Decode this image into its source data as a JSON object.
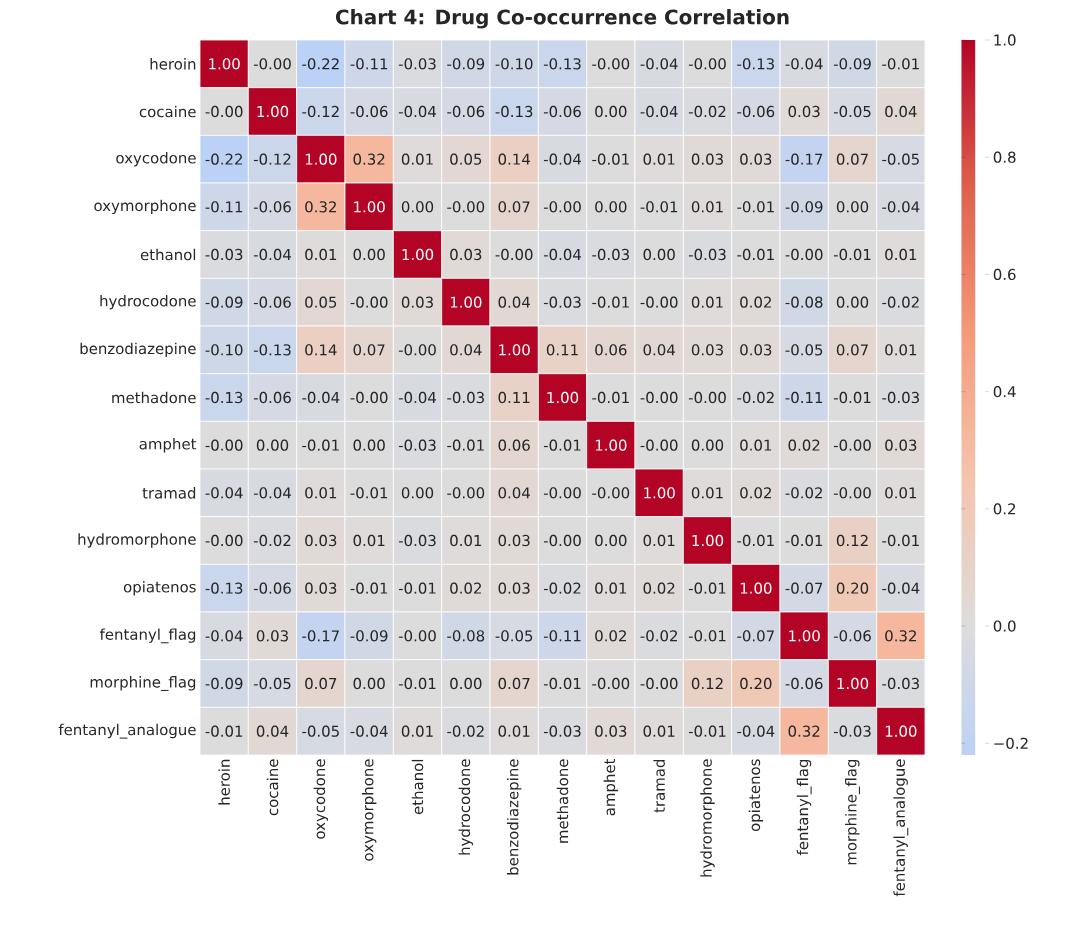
{
  "chart_data": {
    "type": "heatmap",
    "title": "Chart 4: Drug Co-occurrence Correlation",
    "categories": [
      "heroin",
      "cocaine",
      "oxycodone",
      "oxymorphone",
      "ethanol",
      "hydrocodone",
      "benzodiazepine",
      "methadone",
      "amphet",
      "tramad",
      "hydromorphone",
      "opiatenos",
      "fentanyl_flag",
      "morphine_flag",
      "fentanyl_analogue"
    ],
    "y_categories": [
      "heroin",
      "cocaine",
      "oxycodone",
      "oxymorphone",
      "ethanol",
      "hydrocodone",
      "benzodiazepine",
      "methadone",
      "amphet",
      "tramad",
      "hydromorphone",
      "opiatenos",
      "fentanyl_flag",
      "morphine_flag",
      "fentanyl_analogue"
    ],
    "cells": [
      [
        1.0,
        -0.0,
        -0.22,
        -0.11,
        -0.03,
        -0.09,
        -0.1,
        -0.13,
        -0.0,
        -0.04,
        -0.0,
        -0.13,
        -0.04,
        -0.09,
        -0.01
      ],
      [
        -0.0,
        1.0,
        -0.12,
        -0.06,
        -0.04,
        -0.06,
        -0.13,
        -0.06,
        0.0,
        -0.04,
        -0.02,
        -0.06,
        0.03,
        -0.05,
        0.04
      ],
      [
        -0.22,
        -0.12,
        1.0,
        0.32,
        0.01,
        0.05,
        0.14,
        -0.04,
        -0.01,
        0.01,
        0.03,
        0.03,
        -0.17,
        0.07,
        -0.05
      ],
      [
        -0.11,
        -0.06,
        0.32,
        1.0,
        0.0,
        -0.0,
        0.07,
        -0.0,
        0.0,
        -0.01,
        0.01,
        -0.01,
        -0.09,
        0.0,
        -0.04
      ],
      [
        -0.03,
        -0.04,
        0.01,
        0.0,
        1.0,
        0.03,
        -0.0,
        -0.04,
        -0.03,
        0.0,
        -0.03,
        -0.01,
        -0.0,
        -0.01,
        0.01
      ],
      [
        -0.09,
        -0.06,
        0.05,
        -0.0,
        0.03,
        1.0,
        0.04,
        -0.03,
        -0.01,
        -0.0,
        0.01,
        0.02,
        -0.08,
        0.0,
        -0.02
      ],
      [
        -0.1,
        -0.13,
        0.14,
        0.07,
        -0.0,
        0.04,
        1.0,
        0.11,
        0.06,
        0.04,
        0.03,
        0.03,
        -0.05,
        0.07,
        0.01
      ],
      [
        -0.13,
        -0.06,
        -0.04,
        -0.0,
        -0.04,
        -0.03,
        0.11,
        1.0,
        -0.01,
        -0.0,
        -0.0,
        -0.02,
        -0.11,
        -0.01,
        -0.03
      ],
      [
        -0.0,
        0.0,
        -0.01,
        0.0,
        -0.03,
        -0.01,
        0.06,
        -0.01,
        1.0,
        -0.0,
        0.0,
        0.01,
        0.02,
        -0.0,
        0.03
      ],
      [
        -0.04,
        -0.04,
        0.01,
        -0.01,
        0.0,
        -0.0,
        0.04,
        -0.0,
        -0.0,
        1.0,
        0.01,
        0.02,
        -0.02,
        -0.0,
        0.01
      ],
      [
        -0.0,
        -0.02,
        0.03,
        0.01,
        -0.03,
        0.01,
        0.03,
        -0.0,
        0.0,
        0.01,
        1.0,
        -0.01,
        -0.01,
        0.12,
        -0.01
      ],
      [
        -0.13,
        -0.06,
        0.03,
        -0.01,
        -0.01,
        0.02,
        0.03,
        -0.02,
        0.01,
        0.02,
        -0.01,
        1.0,
        -0.07,
        0.2,
        -0.04
      ],
      [
        -0.04,
        0.03,
        -0.17,
        -0.09,
        -0.0,
        -0.08,
        -0.05,
        -0.11,
        0.02,
        -0.02,
        -0.01,
        -0.07,
        1.0,
        -0.06,
        0.32
      ],
      [
        -0.09,
        -0.05,
        0.07,
        0.0,
        -0.01,
        0.0,
        0.07,
        -0.01,
        -0.0,
        -0.0,
        0.12,
        0.2,
        -0.06,
        1.0,
        -0.03
      ],
      [
        -0.01,
        0.04,
        -0.05,
        -0.04,
        0.01,
        -0.02,
        0.01,
        -0.03,
        0.03,
        0.01,
        -0.01,
        -0.04,
        0.32,
        -0.03,
        1.0
      ]
    ],
    "cell_labels": [
      [
        "1.00",
        "-0.00",
        "-0.22",
        "-0.11",
        "-0.03",
        "-0.09",
        "-0.10",
        "-0.13",
        "-0.00",
        "-0.04",
        "-0.00",
        "-0.13",
        "-0.04",
        "-0.09",
        "-0.01"
      ],
      [
        "-0.00",
        "1.00",
        "-0.12",
        "-0.06",
        "-0.04",
        "-0.06",
        "-0.13",
        "-0.06",
        "0.00",
        "-0.04",
        "-0.02",
        "-0.06",
        "0.03",
        "-0.05",
        "0.04"
      ],
      [
        "-0.22",
        "-0.12",
        "1.00",
        "0.32",
        "0.01",
        "0.05",
        "0.14",
        "-0.04",
        "-0.01",
        "0.01",
        "0.03",
        "0.03",
        "-0.17",
        "0.07",
        "-0.05"
      ],
      [
        "-0.11",
        "-0.06",
        "0.32",
        "1.00",
        "0.00",
        "-0.00",
        "0.07",
        "-0.00",
        "0.00",
        "-0.01",
        "0.01",
        "-0.01",
        "-0.09",
        "0.00",
        "-0.04"
      ],
      [
        "-0.03",
        "-0.04",
        "0.01",
        "0.00",
        "1.00",
        "0.03",
        "-0.00",
        "-0.04",
        "-0.03",
        "0.00",
        "-0.03",
        "-0.01",
        "-0.00",
        "-0.01",
        "0.01"
      ],
      [
        "-0.09",
        "-0.06",
        "0.05",
        "-0.00",
        "0.03",
        "1.00",
        "0.04",
        "-0.03",
        "-0.01",
        "-0.00",
        "0.01",
        "0.02",
        "-0.08",
        "0.00",
        "-0.02"
      ],
      [
        "-0.10",
        "-0.13",
        "0.14",
        "0.07",
        "-0.00",
        "0.04",
        "1.00",
        "0.11",
        "0.06",
        "0.04",
        "0.03",
        "0.03",
        "-0.05",
        "0.07",
        "0.01"
      ],
      [
        "-0.13",
        "-0.06",
        "-0.04",
        "-0.00",
        "-0.04",
        "-0.03",
        "0.11",
        "1.00",
        "-0.01",
        "-0.00",
        "-0.00",
        "-0.02",
        "-0.11",
        "-0.01",
        "-0.03"
      ],
      [
        "-0.00",
        "0.00",
        "-0.01",
        "0.00",
        "-0.03",
        "-0.01",
        "0.06",
        "-0.01",
        "1.00",
        "-0.00",
        "0.00",
        "0.01",
        "0.02",
        "-0.00",
        "0.03"
      ],
      [
        "-0.04",
        "-0.04",
        "0.01",
        "-0.01",
        "0.00",
        "-0.00",
        "0.04",
        "-0.00",
        "-0.00",
        "1.00",
        "0.01",
        "0.02",
        "-0.02",
        "-0.00",
        "0.01"
      ],
      [
        "-0.00",
        "-0.02",
        "0.03",
        "0.01",
        "-0.03",
        "0.01",
        "0.03",
        "-0.00",
        "0.00",
        "0.01",
        "1.00",
        "-0.01",
        "-0.01",
        "0.12",
        "-0.01"
      ],
      [
        "-0.13",
        "-0.06",
        "0.03",
        "-0.01",
        "-0.01",
        "0.02",
        "0.03",
        "-0.02",
        "0.01",
        "0.02",
        "-0.01",
        "1.00",
        "-0.07",
        "0.20",
        "-0.04"
      ],
      [
        "-0.04",
        "0.03",
        "-0.17",
        "-0.09",
        "-0.00",
        "-0.08",
        "-0.05",
        "-0.11",
        "0.02",
        "-0.02",
        "-0.01",
        "-0.07",
        "1.00",
        "-0.06",
        "0.32"
      ],
      [
        "-0.09",
        "-0.05",
        "0.07",
        "0.00",
        "-0.01",
        "0.00",
        "0.07",
        "-0.01",
        "-0.00",
        "-0.00",
        "0.12",
        "0.20",
        "-0.06",
        "1.00",
        "-0.03"
      ],
      [
        "-0.01",
        "0.04",
        "-0.05",
        "-0.04",
        "0.01",
        "-0.02",
        "0.01",
        "-0.03",
        "0.03",
        "0.01",
        "-0.01",
        "-0.04",
        "0.32",
        "-0.03",
        "1.00"
      ]
    ],
    "clim": [
      -0.22,
      1.0
    ],
    "cticks": [
      {
        "value": -0.2,
        "label": "−0.2"
      },
      {
        "value": 0.0,
        "label": "0.0"
      },
      {
        "value": 0.2,
        "label": "0.2"
      },
      {
        "value": 0.4,
        "label": "0.4"
      },
      {
        "value": 0.6,
        "label": "0.6"
      },
      {
        "value": 0.8,
        "label": "0.8"
      },
      {
        "value": 1.0,
        "label": "1.0"
      }
    ]
  }
}
